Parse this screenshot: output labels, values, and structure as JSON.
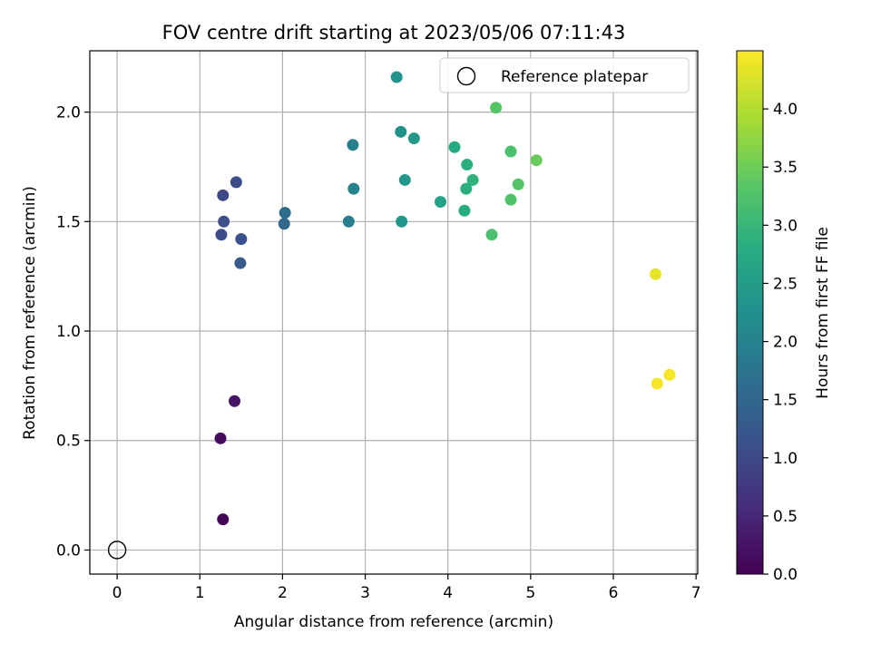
{
  "chart_data": {
    "type": "scatter",
    "title": "FOV centre drift starting at 2023/05/06 07:11:43",
    "xlabel": "Angular distance from reference (arcmin)",
    "ylabel": "Rotation from reference (arcmin)",
    "xlim": [
      -0.33,
      7.02
    ],
    "ylim": [
      -0.11,
      2.28
    ],
    "xticks": [
      0,
      1,
      2,
      3,
      4,
      5,
      6,
      7
    ],
    "xtick_labels": [
      "0",
      "1",
      "2",
      "3",
      "4",
      "5",
      "6",
      "7"
    ],
    "yticks": [
      0.0,
      0.5,
      1.0,
      1.5,
      2.0
    ],
    "ytick_labels": [
      "0.0",
      "0.5",
      "1.0",
      "1.5",
      "2.0"
    ],
    "grid": true,
    "legend": {
      "position": "top-right",
      "entries": [
        "Reference platepar"
      ]
    },
    "colormap": "viridis",
    "colorbar": {
      "label": "Hours from first FF file",
      "range": [
        0.0,
        4.5
      ],
      "ticks": [
        0.0,
        0.5,
        1.0,
        1.5,
        2.0,
        2.5,
        3.0,
        3.5,
        4.0
      ],
      "tick_labels": [
        "0.0",
        "0.5",
        "1.0",
        "1.5",
        "2.0",
        "2.5",
        "3.0",
        "3.5",
        "4.0"
      ]
    },
    "reference_point": {
      "x": 0.0,
      "y": 0.0
    },
    "series": [
      {
        "points": [
          {
            "x": 1.28,
            "y": 0.14,
            "c": 0.05
          },
          {
            "x": 1.25,
            "y": 0.51,
            "c": 0.15
          },
          {
            "x": 1.42,
            "y": 0.68,
            "c": 0.25
          },
          {
            "x": 1.26,
            "y": 1.44,
            "c": 1.05
          },
          {
            "x": 1.29,
            "y": 1.5,
            "c": 1.1
          },
          {
            "x": 1.28,
            "y": 1.62,
            "c": 1.0
          },
          {
            "x": 1.44,
            "y": 1.68,
            "c": 1.05
          },
          {
            "x": 1.5,
            "y": 1.42,
            "c": 1.15
          },
          {
            "x": 1.49,
            "y": 1.31,
            "c": 1.3
          },
          {
            "x": 2.02,
            "y": 1.49,
            "c": 1.55
          },
          {
            "x": 2.03,
            "y": 1.54,
            "c": 1.6
          },
          {
            "x": 2.8,
            "y": 1.5,
            "c": 1.9
          },
          {
            "x": 2.85,
            "y": 1.85,
            "c": 1.95
          },
          {
            "x": 2.86,
            "y": 1.65,
            "c": 2.0
          },
          {
            "x": 3.38,
            "y": 2.16,
            "c": 2.3
          },
          {
            "x": 3.43,
            "y": 1.91,
            "c": 2.3
          },
          {
            "x": 3.44,
            "y": 1.5,
            "c": 2.35
          },
          {
            "x": 3.48,
            "y": 1.69,
            "c": 2.4
          },
          {
            "x": 3.59,
            "y": 1.88,
            "c": 2.4
          },
          {
            "x": 3.91,
            "y": 1.59,
            "c": 2.6
          },
          {
            "x": 4.08,
            "y": 1.84,
            "c": 2.75
          },
          {
            "x": 4.2,
            "y": 1.55,
            "c": 2.8
          },
          {
            "x": 4.22,
            "y": 1.65,
            "c": 2.85
          },
          {
            "x": 4.23,
            "y": 1.76,
            "c": 2.85
          },
          {
            "x": 4.3,
            "y": 1.69,
            "c": 2.9
          },
          {
            "x": 4.53,
            "y": 1.44,
            "c": 3.2
          },
          {
            "x": 4.58,
            "y": 2.02,
            "c": 3.3
          },
          {
            "x": 4.76,
            "y": 1.82,
            "c": 3.2
          },
          {
            "x": 4.76,
            "y": 1.6,
            "c": 3.25
          },
          {
            "x": 4.85,
            "y": 1.67,
            "c": 3.3
          },
          {
            "x": 5.07,
            "y": 1.78,
            "c": 3.45
          },
          {
            "x": 6.51,
            "y": 1.26,
            "c": 4.35
          },
          {
            "x": 6.53,
            "y": 0.76,
            "c": 4.45
          },
          {
            "x": 6.68,
            "y": 0.8,
            "c": 4.45
          }
        ]
      }
    ]
  }
}
